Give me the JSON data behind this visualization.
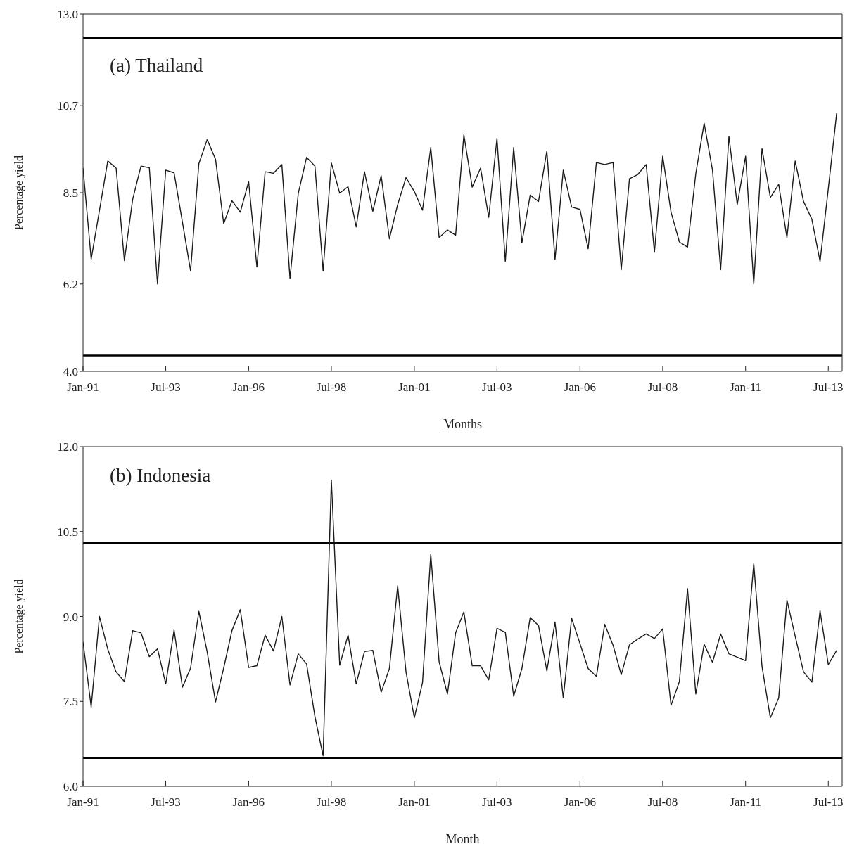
{
  "chart_data": [
    {
      "type": "line",
      "title": "(a) Thailand",
      "xlabel": "Months",
      "ylabel": "Percentage yield",
      "x": [
        "1991-01",
        "1991-04",
        "1991-07",
        "1991-10",
        "1992-01",
        "1992-04",
        "1992-07",
        "1992-10",
        "1993-01",
        "1993-04",
        "1993-07",
        "1993-10",
        "1994-01",
        "1994-04",
        "1994-07",
        "1994-10",
        "1995-01",
        "1995-04",
        "1995-07",
        "1995-10",
        "1996-01",
        "1996-04",
        "1996-07",
        "1996-10",
        "1997-01",
        "1997-04",
        "1997-07",
        "1997-10",
        "1998-01",
        "1998-04",
        "1998-07",
        "1998-10",
        "1999-01",
        "1999-04",
        "1999-07",
        "1999-10",
        "2000-01",
        "2000-04",
        "2000-07",
        "2000-10",
        "2001-01",
        "2001-04",
        "2001-07",
        "2001-10",
        "2002-01",
        "2002-04",
        "2002-07",
        "2002-10",
        "2003-01",
        "2003-04",
        "2003-07",
        "2003-10",
        "2004-01",
        "2004-04",
        "2004-07",
        "2004-10",
        "2005-01",
        "2005-04",
        "2005-07",
        "2005-10",
        "2006-01",
        "2006-04",
        "2006-07",
        "2006-10",
        "2007-01",
        "2007-04",
        "2007-07",
        "2007-10",
        "2008-01",
        "2008-04",
        "2008-07",
        "2008-10",
        "2009-01",
        "2009-04",
        "2009-07",
        "2009-10",
        "2010-01",
        "2010-04",
        "2010-07",
        "2010-10",
        "2011-01",
        "2011-04",
        "2011-07",
        "2011-10",
        "2012-01",
        "2012-04",
        "2012-07",
        "2012-10",
        "2013-01",
        "2013-04",
        "2013-07",
        "2013-10"
      ],
      "series": [
        {
          "color": "#1a1a1a",
          "values": [
            9.12,
            6.83,
            8.05,
            9.3,
            9.12,
            6.79,
            8.33,
            9.17,
            9.13,
            6.2,
            9.07,
            9.0,
            7.76,
            6.53,
            9.23,
            9.84,
            9.34,
            7.72,
            8.3,
            8.01,
            8.78,
            6.63,
            9.03,
            8.99,
            9.21,
            6.34,
            8.48,
            9.39,
            9.17,
            6.53,
            9.25,
            8.49,
            8.65,
            7.64,
            9.03,
            8.03,
            8.93,
            7.34,
            8.2,
            8.88,
            8.53,
            8.06,
            9.64,
            7.37,
            7.56,
            7.43,
            9.96,
            8.64,
            9.12,
            7.88,
            9.87,
            6.77,
            9.64,
            7.24,
            8.44,
            8.28,
            9.55,
            6.82,
            9.07,
            8.14,
            8.08,
            7.09,
            9.26,
            9.21,
            9.26,
            6.56,
            8.85,
            8.96,
            9.21,
            7.0,
            9.42,
            8.01,
            7.26,
            7.13,
            8.98,
            10.25,
            9.07,
            6.56,
            9.92,
            8.2,
            9.42,
            6.2,
            9.61,
            8.38,
            8.71,
            7.37,
            9.3,
            8.28,
            7.83,
            6.77,
            8.6,
            10.5
          ]
        }
      ],
      "xlim": [
        "1991-01",
        "2013-12"
      ],
      "xticks": [
        {
          "value": "1991-01",
          "label": "Jan-91"
        },
        {
          "value": "1993-07",
          "label": "Jul-93"
        },
        {
          "value": "1996-01",
          "label": "Jan-96"
        },
        {
          "value": "1998-07",
          "label": "Jul-98"
        },
        {
          "value": "2001-01",
          "label": "Jan-01"
        },
        {
          "value": "2003-07",
          "label": "Jul-03"
        },
        {
          "value": "2006-01",
          "label": "Jan-06"
        },
        {
          "value": "2008-07",
          "label": "Jul-08"
        },
        {
          "value": "2011-01",
          "label": "Jan-11"
        },
        {
          "value": "2013-07",
          "label": "Jul-13"
        }
      ],
      "ylim": [
        4,
        13
      ],
      "yticks": [
        {
          "value": 4,
          "label": "4.0"
        },
        6.2,
        8.5,
        10.7,
        {
          "value": 13,
          "label": "13.0"
        }
      ],
      "ref_lines": [
        {
          "axis": "y",
          "value": 12.4,
          "color": "#000000"
        },
        {
          "axis": "y",
          "value": 4.4,
          "color": "#000000"
        }
      ],
      "grid": false,
      "legend": false,
      "marker": "none",
      "line_style": "solid"
    },
    {
      "type": "line",
      "title": "(b) Indonesia",
      "xlabel": "Month",
      "ylabel": "Percentage yield",
      "x": [
        "1991-01",
        "1991-04",
        "1991-07",
        "1991-10",
        "1992-01",
        "1992-04",
        "1992-07",
        "1992-10",
        "1993-01",
        "1993-04",
        "1993-07",
        "1993-10",
        "1994-01",
        "1994-04",
        "1994-07",
        "1994-10",
        "1995-01",
        "1995-04",
        "1995-07",
        "1995-10",
        "1996-01",
        "1996-04",
        "1996-07",
        "1996-10",
        "1997-01",
        "1997-04",
        "1997-07",
        "1997-10",
        "1998-01",
        "1998-04",
        "1998-07",
        "1998-10",
        "1999-01",
        "1999-04",
        "1999-07",
        "1999-10",
        "2000-01",
        "2000-04",
        "2000-07",
        "2000-10",
        "2001-01",
        "2001-04",
        "2001-07",
        "2001-10",
        "2002-01",
        "2002-04",
        "2002-07",
        "2002-10",
        "2003-01",
        "2003-04",
        "2003-07",
        "2003-10",
        "2004-01",
        "2004-04",
        "2004-07",
        "2004-10",
        "2005-01",
        "2005-04",
        "2005-07",
        "2005-10",
        "2006-01",
        "2006-04",
        "2006-07",
        "2006-10",
        "2007-01",
        "2007-04",
        "2007-07",
        "2007-10",
        "2008-01",
        "2008-04",
        "2008-07",
        "2008-10",
        "2009-01",
        "2009-04",
        "2009-07",
        "2009-10",
        "2010-01",
        "2010-04",
        "2010-07",
        "2010-10",
        "2011-01",
        "2011-04",
        "2011-07",
        "2011-10",
        "2012-01",
        "2012-04",
        "2012-07",
        "2012-10",
        "2013-01",
        "2013-04",
        "2013-07",
        "2013-10"
      ],
      "series": [
        {
          "color": "#1a1a1a",
          "values": [
            8.55,
            7.4,
            9.0,
            8.42,
            8.02,
            7.85,
            8.75,
            8.71,
            8.29,
            8.43,
            7.81,
            8.76,
            7.75,
            8.09,
            9.09,
            8.37,
            7.49,
            8.09,
            8.75,
            9.12,
            8.1,
            8.13,
            8.67,
            8.39,
            9.0,
            7.79,
            8.34,
            8.16,
            7.23,
            6.54,
            11.41,
            8.14,
            8.67,
            7.81,
            8.38,
            8.4,
            7.66,
            8.08,
            9.54,
            8.02,
            7.21,
            7.83,
            10.1,
            8.2,
            7.63,
            8.71,
            9.08,
            8.13,
            8.13,
            7.88,
            8.79,
            8.72,
            7.59,
            8.08,
            8.98,
            8.84,
            8.04,
            8.9,
            7.56,
            8.97,
            8.52,
            8.08,
            7.94,
            8.86,
            8.49,
            7.97,
            8.5,
            8.6,
            8.69,
            8.61,
            8.78,
            7.43,
            7.85,
            9.49,
            7.63,
            8.51,
            8.19,
            8.69,
            8.34,
            8.28,
            8.22,
            9.93,
            8.12,
            7.21,
            7.56,
            9.29,
            8.65,
            8.02,
            7.84,
            9.1,
            8.15,
            8.4
          ]
        }
      ],
      "xlim": [
        "1991-01",
        "2013-12"
      ],
      "xticks": [
        {
          "value": "1991-01",
          "label": "Jan-91"
        },
        {
          "value": "1993-07",
          "label": "Jul-93"
        },
        {
          "value": "1996-01",
          "label": "Jan-96"
        },
        {
          "value": "1998-07",
          "label": "Jul-98"
        },
        {
          "value": "2001-01",
          "label": "Jan-01"
        },
        {
          "value": "2003-07",
          "label": "Jul-03"
        },
        {
          "value": "2006-01",
          "label": "Jan-06"
        },
        {
          "value": "2008-07",
          "label": "Jul-08"
        },
        {
          "value": "2011-01",
          "label": "Jan-11"
        },
        {
          "value": "2013-07",
          "label": "Jul-13"
        }
      ],
      "ylim": [
        6,
        12
      ],
      "yticks": [
        {
          "value": 6,
          "label": "6.0"
        },
        7.5,
        {
          "value": 9,
          "label": "9.0"
        },
        10.5,
        {
          "value": 12,
          "label": "12.0"
        }
      ],
      "ref_lines": [
        {
          "axis": "y",
          "value": 10.3,
          "color": "#000000"
        },
        {
          "axis": "y",
          "value": 6.5,
          "color": "#000000"
        }
      ],
      "grid": false,
      "legend": false,
      "marker": "none",
      "line_style": "solid"
    }
  ]
}
